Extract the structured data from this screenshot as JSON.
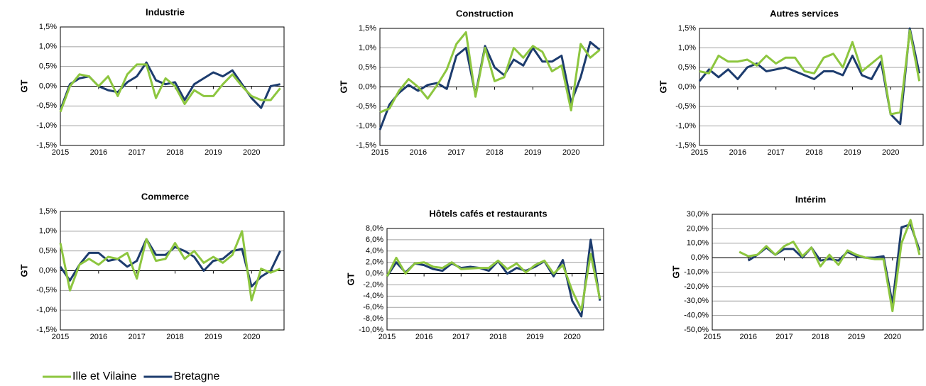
{
  "chart_data": [
    {
      "type": "line",
      "title": "Industrie",
      "y_label": "GT",
      "x": [
        2015,
        2015.25,
        2015.5,
        2015.75,
        2016,
        2016.25,
        2016.5,
        2016.75,
        2017,
        2017.25,
        2017.5,
        2017.75,
        2018,
        2018.25,
        2018.5,
        2018.75,
        2019,
        2019.25,
        2019.5,
        2019.75,
        2020,
        2020.25,
        2020.5,
        2020.75
      ],
      "xlim": [
        2015,
        2020.85
      ],
      "xticks": [
        2015,
        2016,
        2017,
        2018,
        2019,
        2020
      ],
      "ylim": [
        -1.5,
        1.5
      ],
      "yticks": [
        {
          "value": 1.5,
          "label": "1,5%"
        },
        {
          "value": 1,
          "label": "1,0%"
        },
        {
          "value": 0.5,
          "label": "0,5%"
        },
        {
          "value": 0,
          "label": "0,0%"
        },
        {
          "value": -0.5,
          "label": "-0,5%"
        },
        {
          "value": -1,
          "label": "-1,0%"
        },
        {
          "value": -1.5,
          "label": "-1,5%"
        }
      ],
      "grid": true,
      "series": [
        {
          "name": "Ille et Vilaine",
          "color": "#8dc63f",
          "values": [
            -0.65,
            0.0,
            0.3,
            0.25,
            0.0,
            0.25,
            -0.25,
            0.3,
            0.55,
            0.55,
            -0.3,
            0.2,
            0.0,
            -0.45,
            -0.1,
            -0.25,
            -0.25,
            0.05,
            0.3,
            0.0,
            -0.25,
            -0.35,
            -0.35,
            -0.05
          ]
        },
        {
          "name": "Bretagne",
          "color": "#1d3c6e",
          "values": [
            -0.6,
            0.05,
            0.2,
            0.25,
            0.0,
            -0.1,
            -0.15,
            0.1,
            0.25,
            0.6,
            0.15,
            0.05,
            0.1,
            -0.35,
            0.05,
            0.2,
            0.35,
            0.25,
            0.4,
            0.05,
            -0.3,
            -0.55,
            0.0,
            0.05
          ]
        }
      ]
    },
    {
      "type": "line",
      "title": "Construction",
      "y_label": "GT",
      "x": [
        2015,
        2015.25,
        2015.5,
        2015.75,
        2016,
        2016.25,
        2016.5,
        2016.75,
        2017,
        2017.25,
        2017.5,
        2017.75,
        2018,
        2018.25,
        2018.5,
        2018.75,
        2019,
        2019.25,
        2019.5,
        2019.75,
        2020,
        2020.25,
        2020.5,
        2020.75
      ],
      "xlim": [
        2015,
        2020.85
      ],
      "xticks": [
        2015,
        2016,
        2017,
        2018,
        2019,
        2020
      ],
      "ylim": [
        -1.5,
        1.5
      ],
      "yticks": [
        {
          "value": 1.5,
          "label": "1,5%"
        },
        {
          "value": 1,
          "label": "1,0%"
        },
        {
          "value": 0.5,
          "label": "0,5%"
        },
        {
          "value": 0,
          "label": "0,0%"
        },
        {
          "value": -0.5,
          "label": "-0,5%"
        },
        {
          "value": -1,
          "label": "-1,0%"
        },
        {
          "value": -1.5,
          "label": "-1,5%"
        }
      ],
      "grid": true,
      "series": [
        {
          "name": "Ille et Vilaine",
          "color": "#8dc63f",
          "values": [
            -0.65,
            -0.55,
            -0.1,
            0.2,
            0.0,
            -0.3,
            0.05,
            0.45,
            1.1,
            1.4,
            -0.25,
            1.0,
            0.15,
            0.25,
            1.0,
            0.75,
            1.05,
            0.9,
            0.4,
            0.55,
            -0.6,
            1.1,
            0.75,
            0.95
          ]
        },
        {
          "name": "Bretagne",
          "color": "#1d3c6e",
          "values": [
            -1.1,
            -0.45,
            -0.15,
            0.05,
            -0.1,
            0.05,
            0.1,
            -0.05,
            0.8,
            1.0,
            -0.2,
            1.05,
            0.5,
            0.3,
            0.7,
            0.55,
            1.0,
            0.65,
            0.65,
            0.8,
            -0.4,
            0.25,
            1.15,
            0.95
          ]
        }
      ]
    },
    {
      "type": "line",
      "title": "Autres services",
      "y_label": "GT",
      "x": [
        2015,
        2015.25,
        2015.5,
        2015.75,
        2016,
        2016.25,
        2016.5,
        2016.75,
        2017,
        2017.25,
        2017.5,
        2017.75,
        2018,
        2018.25,
        2018.5,
        2018.75,
        2019,
        2019.25,
        2019.5,
        2019.75,
        2020,
        2020.25,
        2020.5,
        2020.75
      ],
      "xlim": [
        2015,
        2020.85
      ],
      "xticks": [
        2015,
        2016,
        2017,
        2018,
        2019,
        2020
      ],
      "ylim": [
        -1.5,
        1.5
      ],
      "yticks": [
        {
          "value": 1.5,
          "label": "1,5%"
        },
        {
          "value": 1,
          "label": "1,0%"
        },
        {
          "value": 0.5,
          "label": "0,5%"
        },
        {
          "value": 0,
          "label": "0,0%"
        },
        {
          "value": -0.5,
          "label": "-0,5%"
        },
        {
          "value": -1,
          "label": "-1,0%"
        },
        {
          "value": -1.5,
          "label": "-1,5%"
        }
      ],
      "grid": true,
      "series": [
        {
          "name": "Ille et Vilaine",
          "color": "#8dc63f",
          "values": [
            0.4,
            0.35,
            0.8,
            0.65,
            0.65,
            0.7,
            0.55,
            0.8,
            0.6,
            0.75,
            0.75,
            0.4,
            0.35,
            0.75,
            0.85,
            0.5,
            1.15,
            0.4,
            0.6,
            0.8,
            -0.7,
            -0.65,
            1.45,
            0.15
          ]
        },
        {
          "name": "Bretagne",
          "color": "#1d3c6e",
          "values": [
            0.15,
            0.45,
            0.25,
            0.45,
            0.2,
            0.5,
            0.6,
            0.4,
            0.45,
            0.5,
            0.4,
            0.3,
            0.2,
            0.4,
            0.4,
            0.3,
            0.8,
            0.3,
            0.2,
            0.65,
            -0.7,
            -0.95,
            1.5,
            0.35
          ]
        }
      ]
    },
    {
      "type": "line",
      "title": "Commerce",
      "y_label": "GT",
      "x": [
        2015,
        2015.25,
        2015.5,
        2015.75,
        2016,
        2016.25,
        2016.5,
        2016.75,
        2017,
        2017.25,
        2017.5,
        2017.75,
        2018,
        2018.25,
        2018.5,
        2018.75,
        2019,
        2019.25,
        2019.5,
        2019.75,
        2020,
        2020.25,
        2020.5,
        2020.75
      ],
      "xlim": [
        2015,
        2020.85
      ],
      "xticks": [
        2015,
        2016,
        2017,
        2018,
        2019,
        2020
      ],
      "ylim": [
        -1.5,
        1.5
      ],
      "yticks": [
        {
          "value": 1.5,
          "label": "1,5%"
        },
        {
          "value": 1,
          "label": "1,0%"
        },
        {
          "value": 0.5,
          "label": "0,5%"
        },
        {
          "value": 0,
          "label": "0,0%"
        },
        {
          "value": -0.5,
          "label": "-0,5%"
        },
        {
          "value": -1,
          "label": "-1,0%"
        },
        {
          "value": -1.5,
          "label": "-1,5%"
        }
      ],
      "grid": true,
      "series": [
        {
          "name": "Ille et Vilaine",
          "color": "#8dc63f",
          "values": [
            0.7,
            -0.5,
            0.15,
            0.3,
            0.15,
            0.35,
            0.3,
            0.45,
            -0.2,
            0.8,
            0.25,
            0.3,
            0.7,
            0.3,
            0.5,
            0.2,
            0.35,
            0.2,
            0.4,
            1.0,
            -0.75,
            0.05,
            -0.05,
            0.05
          ]
        },
        {
          "name": "Bretagne",
          "color": "#1d3c6e",
          "values": [
            0.1,
            -0.25,
            0.15,
            0.45,
            0.45,
            0.25,
            0.3,
            0.1,
            0.25,
            0.8,
            0.4,
            0.4,
            0.6,
            0.5,
            0.35,
            0.0,
            0.25,
            0.3,
            0.5,
            0.55,
            -0.4,
            -0.15,
            0.0,
            0.5
          ]
        }
      ]
    },
    {
      "type": "line",
      "title": "Hôtels cafés et restaurants",
      "y_label": "GT",
      "x": [
        2015,
        2015.25,
        2015.5,
        2015.75,
        2016,
        2016.25,
        2016.5,
        2016.75,
        2017,
        2017.25,
        2017.5,
        2017.75,
        2018,
        2018.25,
        2018.5,
        2018.75,
        2019,
        2019.25,
        2019.5,
        2019.75,
        2020,
        2020.25,
        2020.5,
        2020.75
      ],
      "xlim": [
        2015,
        2020.85
      ],
      "xticks": [
        2015,
        2016,
        2017,
        2018,
        2019,
        2020
      ],
      "ylim": [
        -10,
        8
      ],
      "yticks": [
        {
          "value": 8,
          "label": "8,0%"
        },
        {
          "value": 6,
          "label": "6,0%"
        },
        {
          "value": 4,
          "label": "4,0%"
        },
        {
          "value": 2,
          "label": "2,0%"
        },
        {
          "value": 0,
          "label": "0,0%"
        },
        {
          "value": -2,
          "label": "-2,0%"
        },
        {
          "value": -4,
          "label": "-4,0%"
        },
        {
          "value": -6,
          "label": "-6,0%"
        },
        {
          "value": -8,
          "label": "-8,0%"
        },
        {
          "value": -10,
          "label": "-10,0%"
        }
      ],
      "grid": true,
      "series": [
        {
          "name": "Ille et Vilaine",
          "color": "#8dc63f",
          "values": [
            -0.5,
            2.8,
            0.0,
            1.8,
            2.0,
            1.2,
            1.0,
            2.0,
            0.8,
            0.9,
            1.0,
            1.0,
            2.3,
            0.8,
            1.8,
            0.2,
            1.5,
            2.3,
            0.0,
            1.5,
            -3.0,
            -6.5,
            3.5,
            -4.5
          ]
        },
        {
          "name": "Bretagne",
          "color": "#1d3c6e",
          "values": [
            -0.5,
            2.0,
            0.2,
            1.8,
            1.5,
            0.8,
            0.5,
            1.8,
            1.0,
            1.2,
            1.0,
            0.5,
            2.2,
            0.0,
            1.0,
            0.5,
            1.2,
            2.2,
            -0.5,
            2.4,
            -4.8,
            -7.6,
            6.0,
            -4.8
          ]
        }
      ]
    },
    {
      "type": "line",
      "title": "Intérim",
      "y_label": "GT",
      "x": [
        2015,
        2015.25,
        2015.5,
        2015.75,
        2016,
        2016.25,
        2016.5,
        2016.75,
        2017,
        2017.25,
        2017.5,
        2017.75,
        2018,
        2018.25,
        2018.5,
        2018.75,
        2019,
        2019.25,
        2019.5,
        2019.75,
        2020,
        2020.25,
        2020.5,
        2020.75
      ],
      "xlim": [
        2015,
        2020.85
      ],
      "xticks": [
        2015,
        2016,
        2017,
        2018,
        2019,
        2020
      ],
      "ylim": [
        -50,
        30
      ],
      "yticks": [
        {
          "value": 30,
          "label": "30,0%"
        },
        {
          "value": 20,
          "label": "20,0%"
        },
        {
          "value": 10,
          "label": "10,0%"
        },
        {
          "value": 0,
          "label": "0,0%"
        },
        {
          "value": -10,
          "label": "-10,0%"
        },
        {
          "value": -20,
          "label": "-20,0%"
        },
        {
          "value": -30,
          "label": "-30,0%"
        },
        {
          "value": -40,
          "label": "-40,0%"
        },
        {
          "value": -50,
          "label": "-50,0%"
        }
      ],
      "grid": true,
      "series": [
        {
          "name": "Ille et Vilaine",
          "color": "#8dc63f",
          "values": [
            null,
            null,
            null,
            4,
            1,
            2,
            8,
            2,
            8,
            11,
            1,
            7,
            -6,
            2,
            -5,
            5,
            2,
            0,
            -1,
            -1,
            -37,
            10,
            26,
            2
          ]
        },
        {
          "name": "Bretagne",
          "color": "#1d3c6e",
          "values": [
            null,
            null,
            null,
            null,
            -2,
            2,
            7,
            2,
            6,
            6,
            0,
            7,
            -2,
            -1,
            -2,
            4,
            1,
            0,
            0,
            1,
            -32,
            21,
            23,
            5
          ]
        }
      ]
    }
  ]
}
